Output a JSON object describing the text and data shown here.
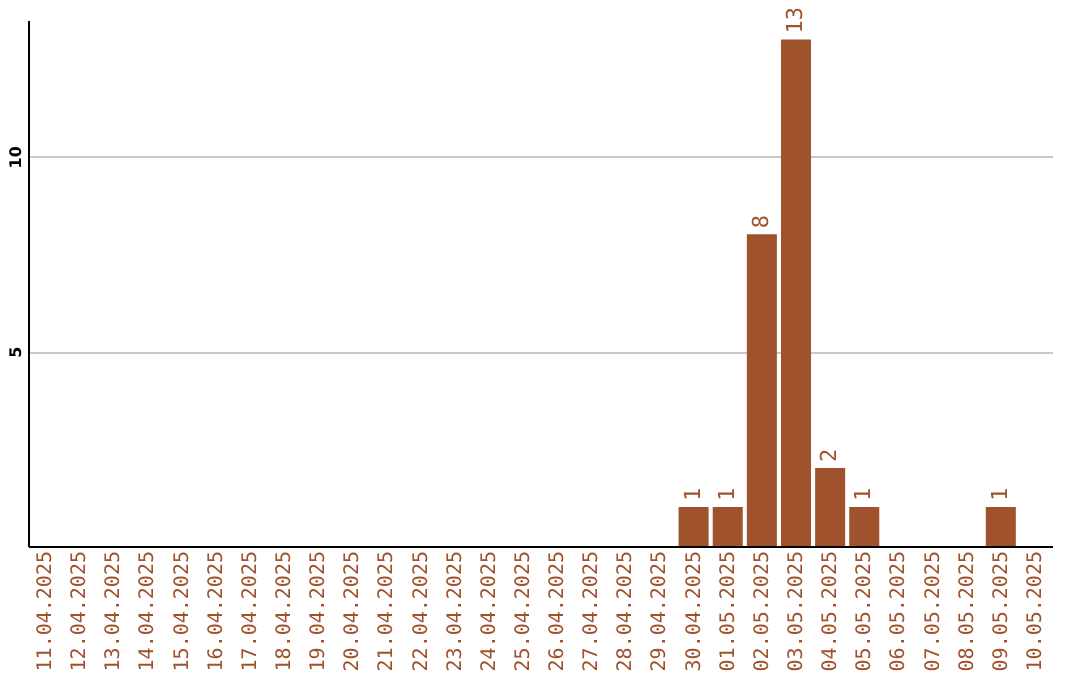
{
  "chart_data": {
    "type": "bar",
    "categories": [
      "11.04.2025",
      "12.04.2025",
      "13.04.2025",
      "14.04.2025",
      "15.04.2025",
      "16.04.2025",
      "17.04.2025",
      "18.04.2025",
      "19.04.2025",
      "20.04.2025",
      "21.04.2025",
      "22.04.2025",
      "23.04.2025",
      "24.04.2025",
      "25.04.2025",
      "26.04.2025",
      "27.04.2025",
      "28.04.2025",
      "29.04.2025",
      "30.04.2025",
      "01.05.2025",
      "02.05.2025",
      "03.05.2025",
      "04.05.2025",
      "05.05.2025",
      "06.05.2025",
      "07.05.2025",
      "08.05.2025",
      "09.05.2025",
      "10.05.2025"
    ],
    "values": [
      0,
      0,
      0,
      0,
      0,
      0,
      0,
      0,
      0,
      0,
      0,
      0,
      0,
      0,
      0,
      0,
      0,
      0,
      0,
      1,
      1,
      8,
      13,
      2,
      1,
      0,
      0,
      0,
      1,
      0
    ],
    "value_labels": [
      null,
      null,
      null,
      null,
      null,
      null,
      null,
      null,
      null,
      null,
      null,
      null,
      null,
      null,
      null,
      null,
      null,
      null,
      null,
      "1",
      "1",
      "8",
      "13",
      "2",
      "1",
      null,
      null,
      null,
      "1",
      null
    ],
    "color": "#a0522d",
    "ylim": [
      0,
      13.5
    ],
    "yticks": [
      5,
      10
    ],
    "grid": "y"
  }
}
